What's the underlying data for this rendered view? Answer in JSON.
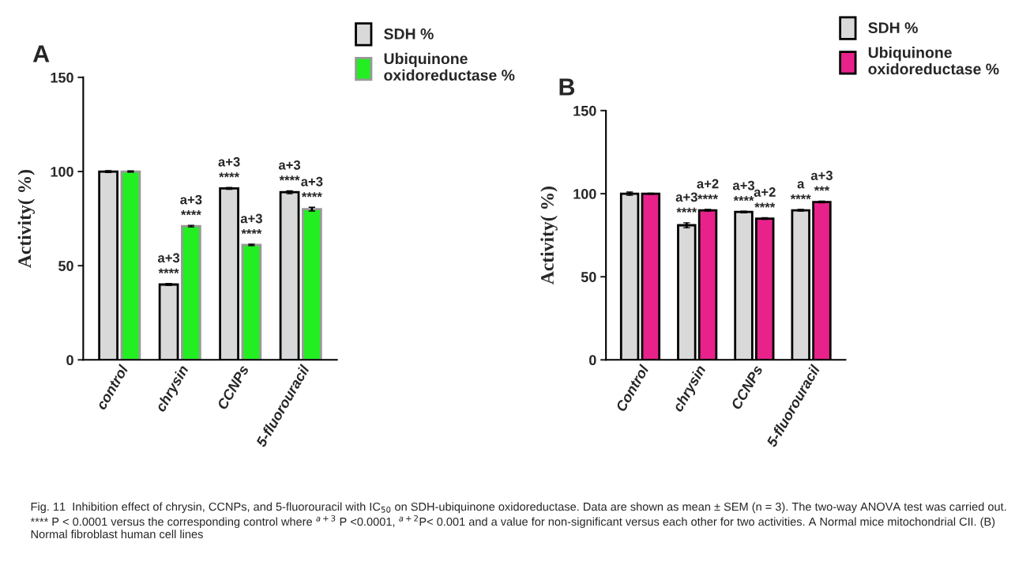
{
  "chart_data": [
    {
      "type": "bar",
      "title": "A",
      "ylabel": "Activity( %)",
      "categories": [
        "control",
        "chrysin",
        "CCNPs",
        "5-fluorouracil"
      ],
      "ylim": [
        0,
        150
      ],
      "yticks": [
        0,
        50,
        100,
        150
      ],
      "grid": false,
      "legend": "top right",
      "series": [
        {
          "name": "SDH %",
          "color": "#d9d9d9",
          "values": [
            100,
            40,
            91,
            89
          ],
          "errors": [
            0.5,
            0.5,
            0.5,
            0.8
          ],
          "value_labels": [
            null,
            "a+3\n****",
            "a+3\n****",
            "a+3\n****"
          ]
        },
        {
          "name": "Ubiquinone\noxidoreductase %",
          "color": "#22ee22",
          "values": [
            100,
            71,
            61,
            80
          ],
          "errors": [
            0.3,
            0.4,
            0.4,
            1
          ],
          "value_labels": [
            null,
            "a+3\n****",
            "a+3\n****",
            "a+3\n****"
          ]
        }
      ],
      "annotations": [
        "Fig. 11  Inhibition effect of chrysin, CCNPs, and 5-fluorouracil with IC$_{50}$ on SDH-ubiquinone oxidoreductase. Data are shown as mean ± SEM (n = 3). The two-way ANOVA test was carried out. **** P < 0.0001 versus the corresponding control where $^{a+3}$ P <0.0001, $^{a+2}$P< 0.001 and a value for non-significant versus each other for two activities. A Normal mice mitochondrial CII. (B) Normal fibroblast human cell lines"
      ]
    },
    {
      "type": "bar",
      "title": "B",
      "ylabel": "Activity( %)",
      "categories": [
        "Control",
        "chrysin",
        "CCNPs",
        "5-fluorouracil"
      ],
      "ylim": [
        0,
        150
      ],
      "yticks": [
        0,
        50,
        100,
        150
      ],
      "grid": false,
      "legend": "top right",
      "series": [
        {
          "name": "SDH %",
          "color": "#d9d9d9",
          "values": [
            100,
            81,
            89,
            90
          ],
          "errors": [
            1,
            1.5,
            0.5,
            0.5
          ],
          "value_labels": [
            null,
            "a+3\n****",
            "a+3\n****",
            "a\n****"
          ]
        },
        {
          "name": "Ubiquinone\noxidoreductase %",
          "color": "#e8228a",
          "values": [
            100,
            90,
            85,
            95
          ],
          "errors": [
            0.3,
            0.5,
            0.5,
            0.5
          ],
          "value_labels": [
            null,
            "a+2\n****",
            "a+2\n****",
            "a+3\n***"
          ]
        }
      ]
    }
  ]
}
